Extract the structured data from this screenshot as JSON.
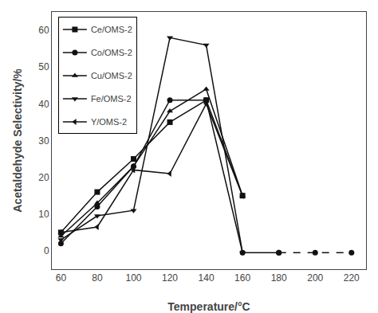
{
  "chart_data": {
    "type": "line",
    "title": "",
    "x_label": "Temperature/°C",
    "y_label": "Acetaldehyde Selectivity/%",
    "xlim": [
      55,
      228
    ],
    "ylim": [
      -5,
      65
    ],
    "xticks": [
      60,
      80,
      100,
      120,
      140,
      160,
      180,
      200,
      220
    ],
    "yticks": [
      0,
      10,
      20,
      30,
      40,
      50,
      60
    ],
    "grid": false,
    "legend": "upper left",
    "series": [
      {
        "name": "Ce/OMS-2",
        "color": "#111111",
        "marker": "square",
        "line_style": "solid",
        "x": [
          60,
          80,
          100,
          120,
          140,
          160
        ],
        "values": [
          5,
          16,
          25,
          35,
          41,
          15
        ]
      },
      {
        "name": "Co/OMS-2",
        "color": "#111111",
        "marker": "circle",
        "line_style": "solid",
        "x": [
          60,
          80,
          100,
          120,
          140,
          160,
          180
        ],
        "values": [
          2,
          12,
          23,
          41,
          41,
          -0.5,
          -0.5
        ]
      },
      {
        "name": "Co/OMS-2",
        "color": "#111111",
        "marker": "circle",
        "line_style": "dashed",
        "x": [
          180,
          200,
          220
        ],
        "values": [
          -0.5,
          -0.5,
          -0.5
        ]
      },
      {
        "name": "Cu/OMS-2",
        "color": "#111111",
        "marker": "triangle-up",
        "line_style": "solid",
        "x": [
          60,
          80,
          100,
          120,
          140,
          160
        ],
        "values": [
          4,
          13,
          23,
          38,
          44,
          15
        ]
      },
      {
        "name": "Fe/OMS-2",
        "color": "#111111",
        "marker": "triangle-down",
        "line_style": "solid",
        "x": [
          60,
          80,
          100,
          120,
          140,
          160
        ],
        "values": [
          3,
          9.5,
          11,
          58,
          56,
          -0.5
        ]
      },
      {
        "name": "Y/OMS-2",
        "color": "#111111",
        "marker": "triangle-left",
        "line_style": "solid",
        "x": [
          60,
          80,
          100,
          120,
          140,
          160
        ],
        "values": [
          5,
          6.5,
          22,
          21,
          40,
          15
        ]
      }
    ]
  }
}
